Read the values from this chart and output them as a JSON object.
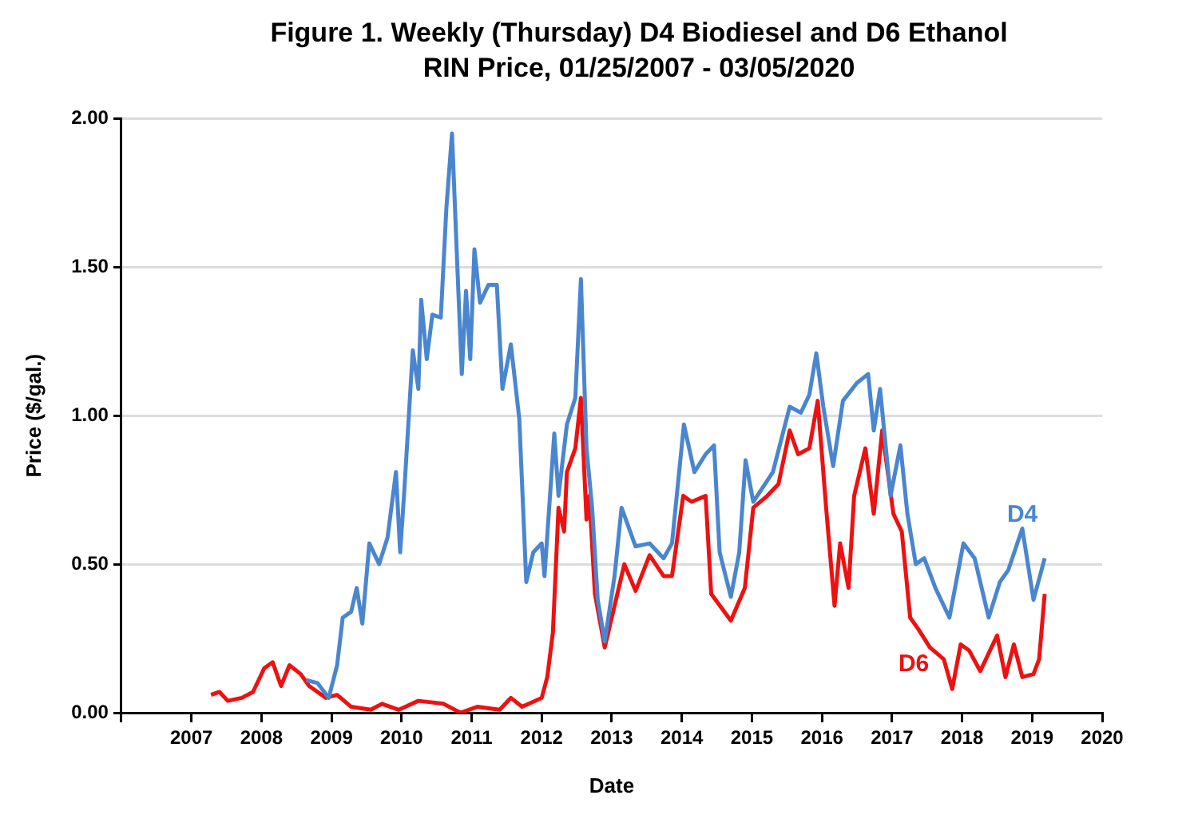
{
  "chart_data": {
    "type": "line",
    "title": "Figure 1. Weekly (Thursday) D4 Biodiesel and D6 Ethanol RIN Price, 01/25/2007 - 03/05/2020",
    "xlabel": "Date",
    "ylabel": "Price ($/gal.)",
    "xlim": [
      2006,
      2020
    ],
    "xticks": [
      {
        "value": 2006,
        "label": null
      },
      2007,
      2008,
      2009,
      2010,
      2011,
      2012,
      2013,
      2014,
      2015,
      2016,
      2017,
      2018,
      2019,
      2020
    ],
    "ylim": [
      0,
      2
    ],
    "yticks": [
      {
        "value": 0,
        "label": "0.00"
      },
      {
        "value": 0.5,
        "label": "0.50"
      },
      {
        "value": 1,
        "label": "1.00"
      },
      {
        "value": 1.5,
        "label": "1.50"
      },
      {
        "value": 2,
        "label": "2.00"
      }
    ],
    "grid": "y",
    "legend": false,
    "marker": "none",
    "line_style": "solid",
    "series": [
      {
        "name": "D4",
        "color": "#4a86d0",
        "x": [
          2008.64,
          2008.8,
          2008.96,
          2009.08,
          2009.16,
          2009.28,
          2009.36,
          2009.44,
          2009.54,
          2009.68,
          2009.8,
          2009.92,
          2009.98,
          2010.04,
          2010.16,
          2010.24,
          2010.28,
          2010.36,
          2010.44,
          2010.56,
          2010.64,
          2010.72,
          2010.8,
          2010.86,
          2010.92,
          2010.98,
          2011.04,
          2011.12,
          2011.24,
          2011.36,
          2011.44,
          2011.56,
          2011.68,
          2011.78,
          2011.88,
          2012.0,
          2012.04,
          2012.18,
          2012.24,
          2012.36,
          2012.48,
          2012.56,
          2012.64,
          2012.72,
          2012.8,
          2012.9,
          2013.04,
          2013.14,
          2013.34,
          2013.54,
          2013.74,
          2013.86,
          2014.03,
          2014.18,
          2014.34,
          2014.46,
          2014.54,
          2014.7,
          2014.82,
          2014.91,
          2015.02,
          2015.3,
          2015.54,
          2015.7,
          2015.82,
          2015.92,
          2016.02,
          2016.16,
          2016.3,
          2016.5,
          2016.66,
          2016.74,
          2016.83,
          2016.98,
          2017.12,
          2017.22,
          2017.34,
          2017.46,
          2017.62,
          2017.82,
          2018.02,
          2018.18,
          2018.38,
          2018.54,
          2018.66,
          2018.86,
          2019.02,
          2019.18
        ],
        "values": [
          0.11,
          0.1,
          0.05,
          0.16,
          0.32,
          0.34,
          0.42,
          0.3,
          0.57,
          0.5,
          0.59,
          0.81,
          0.54,
          0.75,
          1.22,
          1.09,
          1.39,
          1.19,
          1.34,
          1.33,
          1.7,
          1.95,
          1.48,
          1.14,
          1.42,
          1.19,
          1.56,
          1.38,
          1.44,
          1.44,
          1.09,
          1.24,
          0.99,
          0.44,
          0.54,
          0.57,
          0.46,
          0.94,
          0.73,
          0.97,
          1.06,
          1.46,
          0.89,
          0.69,
          0.38,
          0.24,
          0.46,
          0.69,
          0.56,
          0.57,
          0.52,
          0.57,
          0.97,
          0.81,
          0.87,
          0.9,
          0.54,
          0.39,
          0.54,
          0.85,
          0.71,
          0.81,
          1.03,
          1.01,
          1.07,
          1.21,
          1.03,
          0.83,
          1.05,
          1.11,
          1.14,
          0.95,
          1.09,
          0.73,
          0.9,
          0.67,
          0.5,
          0.52,
          0.42,
          0.32,
          0.57,
          0.52,
          0.32,
          0.44,
          0.48,
          0.62,
          0.38,
          0.52
        ]
      },
      {
        "name": "D6",
        "color": "#ee1111",
        "x": [
          2007.28,
          2007.4,
          2007.52,
          2007.72,
          2007.88,
          2008.04,
          2008.16,
          2008.28,
          2008.4,
          2008.56,
          2008.68,
          2008.92,
          2009.08,
          2009.28,
          2009.56,
          2009.72,
          2009.96,
          2010.24,
          2010.6,
          2010.84,
          2011.08,
          2011.4,
          2011.56,
          2011.72,
          2012.0,
          2012.08,
          2012.16,
          2012.24,
          2012.32,
          2012.36,
          2012.48,
          2012.56,
          2012.64,
          2012.68,
          2012.76,
          2012.9,
          2012.98,
          2013.18,
          2013.34,
          2013.54,
          2013.74,
          2013.86,
          2014.02,
          2014.14,
          2014.34,
          2014.42,
          2014.7,
          2014.9,
          2015.02,
          2015.22,
          2015.38,
          2015.54,
          2015.66,
          2015.82,
          2015.94,
          2016.06,
          2016.18,
          2016.26,
          2016.38,
          2016.46,
          2016.62,
          2016.74,
          2016.86,
          2017.02,
          2017.14,
          2017.26,
          2017.38,
          2017.54,
          2017.74,
          2017.86,
          2017.98,
          2018.1,
          2018.26,
          2018.5,
          2018.62,
          2018.74,
          2018.86,
          2019.02,
          2019.1,
          2019.18
        ],
        "values": [
          0.06,
          0.07,
          0.04,
          0.05,
          0.07,
          0.15,
          0.17,
          0.09,
          0.16,
          0.13,
          0.09,
          0.05,
          0.06,
          0.02,
          0.01,
          0.03,
          0.01,
          0.04,
          0.03,
          0.0,
          0.02,
          0.01,
          0.05,
          0.02,
          0.05,
          0.12,
          0.27,
          0.69,
          0.61,
          0.81,
          0.89,
          1.06,
          0.65,
          0.73,
          0.4,
          0.22,
          0.3,
          0.5,
          0.41,
          0.53,
          0.46,
          0.46,
          0.73,
          0.71,
          0.73,
          0.4,
          0.31,
          0.42,
          0.69,
          0.73,
          0.77,
          0.95,
          0.87,
          0.89,
          1.05,
          0.69,
          0.36,
          0.57,
          0.42,
          0.73,
          0.89,
          0.67,
          0.95,
          0.67,
          0.61,
          0.32,
          0.28,
          0.22,
          0.18,
          0.08,
          0.23,
          0.21,
          0.14,
          0.26,
          0.12,
          0.23,
          0.12,
          0.13,
          0.18,
          0.4
        ]
      }
    ]
  }
}
